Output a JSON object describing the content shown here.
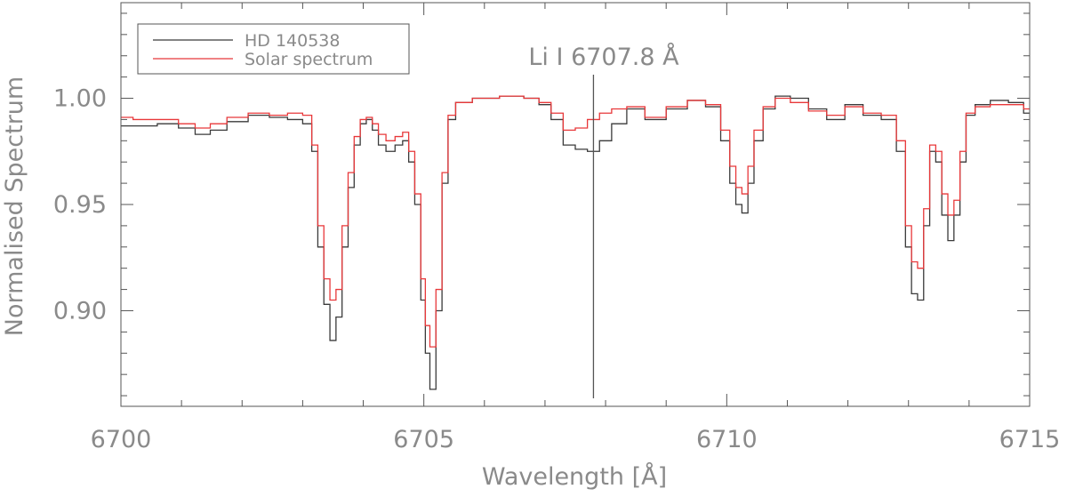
{
  "chart_data": {
    "type": "line",
    "title": "",
    "xlabel": "Wavelength [Å]",
    "ylabel": "Normalised Spectrum",
    "xlim": [
      6700,
      6715
    ],
    "ylim": [
      0.855,
      1.045
    ],
    "x_ticks": [
      6700,
      6705,
      6710,
      6715
    ],
    "x_tick_labels": [
      "6700",
      "6705",
      "6710",
      "6715"
    ],
    "y_ticks": [
      0.9,
      0.95,
      1.0
    ],
    "y_tick_labels": [
      "0.90",
      "0.95",
      "1.00"
    ],
    "grid": false,
    "legend_position": "top-left",
    "annotation": {
      "text": "Li I 6707.8 Å",
      "x": 6707.8
    },
    "colors": {
      "series_1": "#3a3a3a",
      "series_2": "#e8383a",
      "axis": "#555555",
      "text": "#8a8a8a"
    },
    "series": [
      {
        "name": "HD 140538",
        "step": true,
        "points": [
          [
            6700.0,
            0.987
          ],
          [
            6700.4,
            0.987
          ],
          [
            6700.8,
            0.988
          ],
          [
            6701.1,
            0.986
          ],
          [
            6701.35,
            0.983
          ],
          [
            6701.6,
            0.985
          ],
          [
            6701.9,
            0.989
          ],
          [
            6702.3,
            0.992
          ],
          [
            6702.6,
            0.991
          ],
          [
            6702.9,
            0.99
          ],
          [
            6703.1,
            0.988
          ],
          [
            6703.2,
            0.975
          ],
          [
            6703.3,
            0.93
          ],
          [
            6703.4,
            0.903
          ],
          [
            6703.5,
            0.886
          ],
          [
            6703.6,
            0.897
          ],
          [
            6703.7,
            0.93
          ],
          [
            6703.8,
            0.958
          ],
          [
            6703.9,
            0.978
          ],
          [
            6704.0,
            0.988
          ],
          [
            6704.1,
            0.99
          ],
          [
            6704.2,
            0.985
          ],
          [
            6704.3,
            0.978
          ],
          [
            6704.45,
            0.975
          ],
          [
            6704.6,
            0.978
          ],
          [
            6704.7,
            0.98
          ],
          [
            6704.8,
            0.97
          ],
          [
            6704.9,
            0.95
          ],
          [
            6705.0,
            0.905
          ],
          [
            6705.05,
            0.88
          ],
          [
            6705.15,
            0.863
          ],
          [
            6705.25,
            0.9
          ],
          [
            6705.35,
            0.96
          ],
          [
            6705.45,
            0.99
          ],
          [
            6705.6,
            0.998
          ],
          [
            6706.0,
            1.0
          ],
          [
            6706.5,
            1.001
          ],
          [
            6706.8,
            1.0
          ],
          [
            6707.0,
            0.997
          ],
          [
            6707.2,
            0.99
          ],
          [
            6707.4,
            0.978
          ],
          [
            6707.6,
            0.976
          ],
          [
            6707.8,
            0.975
          ],
          [
            6708.0,
            0.98
          ],
          [
            6708.2,
            0.988
          ],
          [
            6708.5,
            0.995
          ],
          [
            6708.8,
            0.99
          ],
          [
            6709.2,
            0.995
          ],
          [
            6709.5,
            0.999
          ],
          [
            6709.8,
            0.996
          ],
          [
            6710.0,
            0.98
          ],
          [
            6710.1,
            0.96
          ],
          [
            6710.2,
            0.95
          ],
          [
            6710.3,
            0.946
          ],
          [
            6710.4,
            0.96
          ],
          [
            6710.5,
            0.98
          ],
          [
            6710.7,
            0.995
          ],
          [
            6710.9,
            1.001
          ],
          [
            6711.2,
            1.0
          ],
          [
            6711.5,
            0.995
          ],
          [
            6711.8,
            0.99
          ],
          [
            6712.1,
            0.997
          ],
          [
            6712.4,
            0.992
          ],
          [
            6712.7,
            0.99
          ],
          [
            6712.9,
            0.975
          ],
          [
            6713.0,
            0.93
          ],
          [
            6713.1,
            0.908
          ],
          [
            6713.2,
            0.905
          ],
          [
            6713.3,
            0.94
          ],
          [
            6713.4,
            0.975
          ],
          [
            6713.5,
            0.97
          ],
          [
            6713.6,
            0.945
          ],
          [
            6713.7,
            0.933
          ],
          [
            6713.8,
            0.945
          ],
          [
            6713.9,
            0.97
          ],
          [
            6714.0,
            0.992
          ],
          [
            6714.2,
            0.997
          ],
          [
            6714.5,
            0.999
          ],
          [
            6714.8,
            0.998
          ],
          [
            6715.0,
            0.993
          ]
        ]
      },
      {
        "name": "Solar spectrum",
        "step": true,
        "points": [
          [
            6700.0,
            0.991
          ],
          [
            6700.4,
            0.99
          ],
          [
            6700.8,
            0.99
          ],
          [
            6701.1,
            0.988
          ],
          [
            6701.35,
            0.986
          ],
          [
            6701.6,
            0.988
          ],
          [
            6701.9,
            0.991
          ],
          [
            6702.3,
            0.993
          ],
          [
            6702.6,
            0.992
          ],
          [
            6702.9,
            0.993
          ],
          [
            6703.1,
            0.992
          ],
          [
            6703.2,
            0.978
          ],
          [
            6703.3,
            0.94
          ],
          [
            6703.4,
            0.915
          ],
          [
            6703.5,
            0.905
          ],
          [
            6703.6,
            0.91
          ],
          [
            6703.7,
            0.94
          ],
          [
            6703.8,
            0.965
          ],
          [
            6703.9,
            0.982
          ],
          [
            6704.0,
            0.99
          ],
          [
            6704.1,
            0.991
          ],
          [
            6704.2,
            0.988
          ],
          [
            6704.3,
            0.983
          ],
          [
            6704.45,
            0.98
          ],
          [
            6704.6,
            0.982
          ],
          [
            6704.7,
            0.984
          ],
          [
            6704.8,
            0.975
          ],
          [
            6704.9,
            0.955
          ],
          [
            6705.0,
            0.915
          ],
          [
            6705.05,
            0.893
          ],
          [
            6705.15,
            0.883
          ],
          [
            6705.25,
            0.91
          ],
          [
            6705.35,
            0.965
          ],
          [
            6705.45,
            0.992
          ],
          [
            6705.6,
            0.998
          ],
          [
            6706.0,
            1.0
          ],
          [
            6706.5,
            1.001
          ],
          [
            6706.8,
            1.0
          ],
          [
            6707.0,
            0.998
          ],
          [
            6707.2,
            0.993
          ],
          [
            6707.4,
            0.985
          ],
          [
            6707.6,
            0.986
          ],
          [
            6707.8,
            0.99
          ],
          [
            6708.0,
            0.993
          ],
          [
            6708.2,
            0.995
          ],
          [
            6708.5,
            0.996
          ],
          [
            6708.8,
            0.991
          ],
          [
            6709.2,
            0.996
          ],
          [
            6709.5,
            0.999
          ],
          [
            6709.8,
            0.997
          ],
          [
            6710.0,
            0.985
          ],
          [
            6710.1,
            0.968
          ],
          [
            6710.2,
            0.958
          ],
          [
            6710.3,
            0.955
          ],
          [
            6710.4,
            0.968
          ],
          [
            6710.5,
            0.985
          ],
          [
            6710.7,
            0.996
          ],
          [
            6710.9,
            1.0
          ],
          [
            6711.2,
            0.998
          ],
          [
            6711.5,
            0.994
          ],
          [
            6711.8,
            0.992
          ],
          [
            6712.1,
            0.996
          ],
          [
            6712.4,
            0.993
          ],
          [
            6712.7,
            0.992
          ],
          [
            6712.9,
            0.98
          ],
          [
            6713.0,
            0.94
          ],
          [
            6713.1,
            0.923
          ],
          [
            6713.2,
            0.92
          ],
          [
            6713.3,
            0.948
          ],
          [
            6713.4,
            0.978
          ],
          [
            6713.5,
            0.975
          ],
          [
            6713.6,
            0.955
          ],
          [
            6713.7,
            0.945
          ],
          [
            6713.8,
            0.952
          ],
          [
            6713.9,
            0.975
          ],
          [
            6714.0,
            0.993
          ],
          [
            6714.2,
            0.996
          ],
          [
            6714.5,
            0.997
          ],
          [
            6714.8,
            0.997
          ],
          [
            6715.0,
            0.995
          ]
        ]
      }
    ]
  }
}
